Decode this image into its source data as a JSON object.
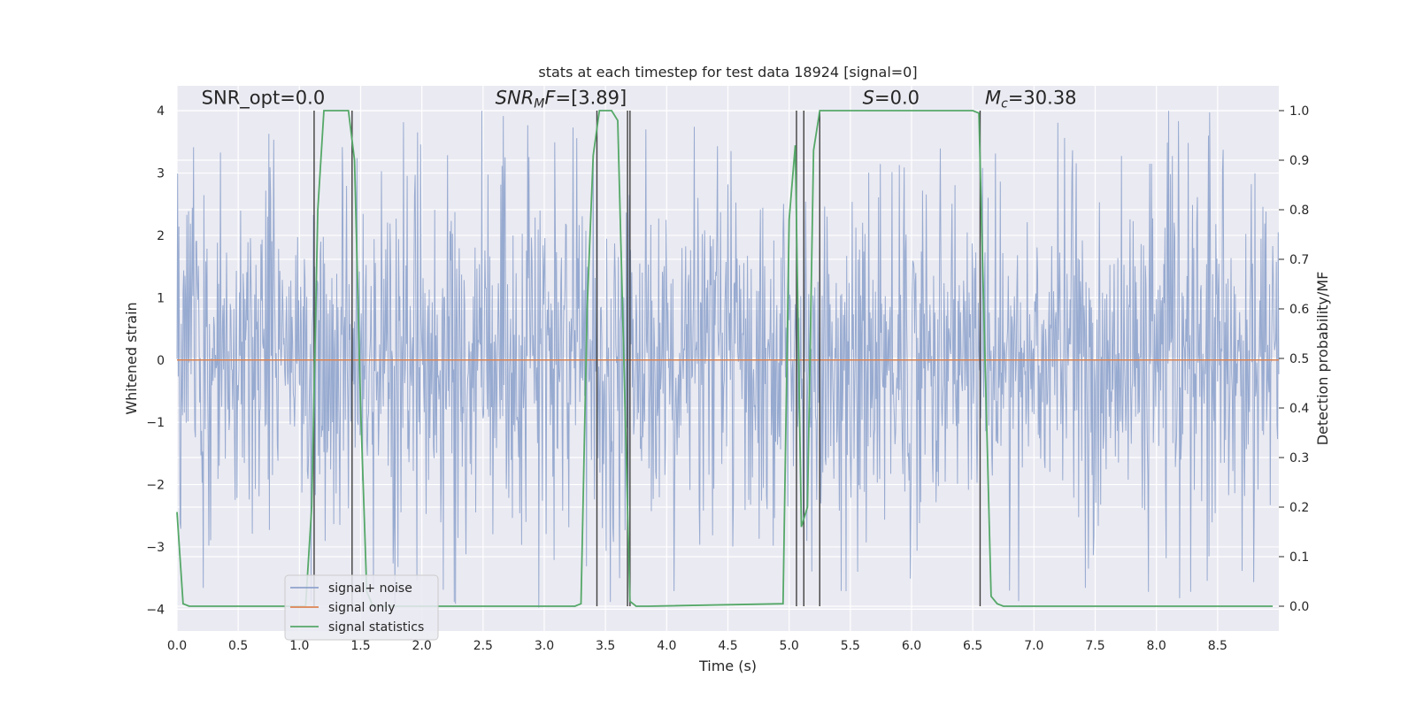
{
  "chart_data": {
    "type": "line",
    "title": "stats at each timestep for test data 18924 [signal=0]",
    "xlabel": "Time (s)",
    "ylabel": "Whitened strain",
    "y2label": "Detection probability/MF",
    "xlim": [
      0,
      9.0
    ],
    "ylim": [
      -4.35,
      4.4
    ],
    "y2lim": [
      -0.05,
      1.05
    ],
    "x_ticks": [
      0.0,
      0.5,
      1.0,
      1.5,
      2.0,
      2.5,
      3.0,
      3.5,
      4.0,
      4.5,
      5.0,
      5.5,
      6.0,
      6.5,
      7.0,
      7.5,
      8.0,
      8.5
    ],
    "x_tick_labels": [
      "0.0",
      "0.5",
      "1.0",
      "1.5",
      "2.0",
      "2.5",
      "3.0",
      "3.5",
      "4.0",
      "4.5",
      "5.0",
      "5.5",
      "6.0",
      "6.5",
      "7.0",
      "7.5",
      "8.0",
      "8.5"
    ],
    "y_ticks": [
      4,
      3,
      2,
      1,
      0,
      -1,
      -2,
      -3,
      -4
    ],
    "y_tick_labels": [
      "4",
      "3",
      "2",
      "1",
      "0",
      "−1",
      "−2",
      "−3",
      "−4"
    ],
    "y2_ticks": [
      1.0,
      0.9,
      0.8,
      0.7,
      0.6,
      0.5,
      0.4,
      0.3,
      0.2,
      0.1,
      0.0
    ],
    "y2_tick_labels": [
      "1.0",
      "0.9",
      "0.8",
      "0.7",
      "0.6",
      "0.5",
      "0.4",
      "0.3",
      "0.2",
      "0.1",
      "0.0"
    ],
    "grid": true,
    "legend_position": "lower-left",
    "colors": {
      "signal_noise": "#8ea3cc",
      "signal_only": "#dd8452",
      "statistics": "#55a868",
      "vlines": "#404040",
      "background": "#eaeaf2",
      "grid": "#ffffff"
    },
    "series": [
      {
        "name": "signal+ noise",
        "description_values": "dense noise about 0, typical amplitude about ±1.6, extremes about ±4",
        "amplitude_range": [
          -4.0,
          4.0
        ],
        "typical_envelope": [
          -1.6,
          1.6
        ]
      },
      {
        "name": "signal only",
        "x": [
          0.0,
          9.0
        ],
        "y": [
          0.0,
          0.0
        ]
      },
      {
        "name": "signal statistics",
        "axis": "right",
        "x": [
          0.0,
          0.05,
          0.1,
          0.15,
          0.2,
          1.05,
          1.1,
          1.15,
          1.2,
          1.25,
          1.3,
          1.4,
          1.45,
          1.5,
          1.55,
          1.6,
          3.25,
          3.3,
          3.35,
          3.4,
          3.45,
          3.5,
          3.55,
          3.6,
          3.65,
          3.7,
          3.75,
          3.8,
          3.85,
          4.95,
          5.0,
          5.05,
          5.1,
          5.15,
          5.2,
          5.25,
          5.3,
          5.35,
          6.5,
          6.55,
          6.6,
          6.65,
          6.7,
          6.75,
          8.95
        ],
        "y": [
          0.19,
          0.005,
          0.0,
          0.0,
          0.0,
          0.0,
          0.2,
          0.8,
          1.0,
          1.0,
          1.0,
          1.0,
          0.9,
          0.4,
          0.03,
          0.0,
          0.0,
          0.005,
          0.6,
          0.91,
          1.0,
          1.0,
          1.0,
          0.98,
          0.5,
          0.01,
          0.0,
          0.0,
          0.0,
          0.005,
          0.78,
          0.93,
          0.16,
          0.2,
          0.92,
          1.0,
          1.0,
          1.0,
          1.0,
          0.995,
          0.5,
          0.02,
          0.005,
          0.0,
          0.0
        ]
      }
    ],
    "vertical_lines_x": [
      1.12,
      1.43,
      3.43,
      3.68,
      3.7,
      5.06,
      5.12,
      5.25,
      6.56
    ],
    "legend": [
      "signal+ noise",
      "signal only",
      "signal statistics"
    ],
    "annotations": [
      {
        "text": "SNR_opt=0.0",
        "x": 0.2,
        "y": 4.05
      },
      {
        "text": "SNR",
        "sub": "M",
        "suffix": "F=[3.89]",
        "x": 2.6,
        "y": 4.05
      },
      {
        "text": "S",
        "suffix": "=0.0",
        "x": 5.6,
        "y": 4.05
      },
      {
        "text": "M",
        "sub": "c",
        "suffix": "=30.38",
        "x": 6.6,
        "y": 4.05
      }
    ]
  }
}
